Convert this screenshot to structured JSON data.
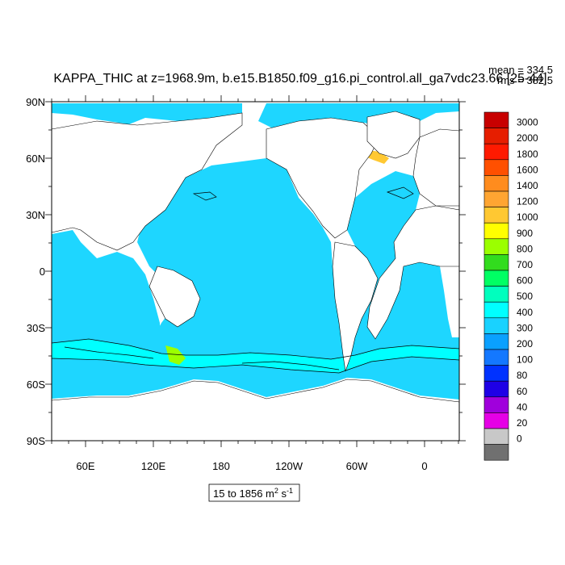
{
  "title": "KAPPA_THIC at z=1968.9m, b.e15.B1850.f09_g16.pi_control.all_ga7vdc23.66 [25-44]",
  "stats": {
    "mean": "mean = 334.5",
    "rms": "rms = 382.5"
  },
  "range_label": {
    "prefix": "15 to 1856 m",
    "sup1": "2",
    "mid": " s",
    "sup2": "-1"
  },
  "map": {
    "lat_ticks": [
      "90N",
      "60N",
      "30N",
      "0",
      "30S",
      "60S",
      "90S"
    ],
    "lon_ticks": [
      "60E",
      "120E",
      "180",
      "120W",
      "60W",
      "0"
    ],
    "ocean_color": "#1ed6ff",
    "land_color": "#ffffff"
  },
  "colorbar": {
    "labels": [
      "3000",
      "2000",
      "1800",
      "1600",
      "1400",
      "1200",
      "1000",
      "900",
      "800",
      "700",
      "600",
      "500",
      "400",
      "300",
      "200",
      "100",
      "80",
      "60",
      "40",
      "20",
      "0"
    ],
    "colors": [
      "#c80000",
      "#e61e00",
      "#ff1a00",
      "#ff5000",
      "#ff8c1e",
      "#ffa532",
      "#ffc832",
      "#ffff00",
      "#9bff00",
      "#32dc1e",
      "#00ff64",
      "#00ffbe",
      "#00ffff",
      "#19d2ff",
      "#0aa0ff",
      "#1478ff",
      "#0032ff",
      "#1e00e6",
      "#a000dc",
      "#e600e6",
      "#c8c8c8",
      "#707070"
    ]
  }
}
